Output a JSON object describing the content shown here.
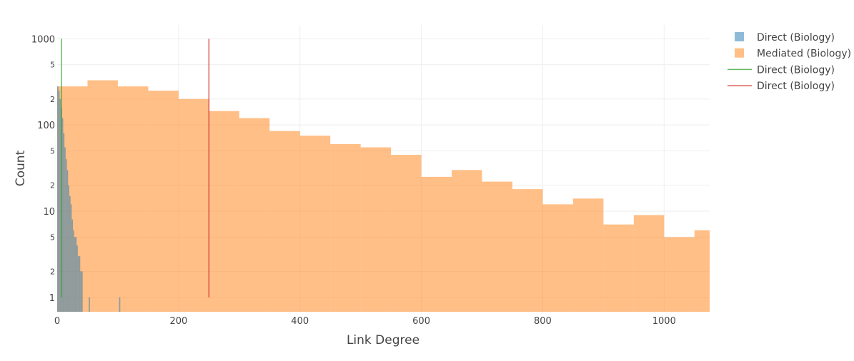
{
  "chart_data": {
    "type": "histogram",
    "xlabel": "Link Degree",
    "ylabel": "Count",
    "xlim": [
      0,
      1075
    ],
    "ylim": [
      0.68,
      1000
    ],
    "y_scale": "log",
    "x_ticks": [
      0,
      200,
      400,
      600,
      800,
      1000
    ],
    "x_tick_labels": [
      "0",
      "200",
      "400",
      "600",
      "800",
      "1000"
    ],
    "y_major_ticks": [
      1,
      10,
      100,
      1000
    ],
    "y_major_labels": [
      "1",
      "10",
      "100",
      "1000"
    ],
    "y_minor_ticks": [
      2,
      5,
      20,
      50,
      200,
      500
    ],
    "y_minor_labels": [
      "2",
      "5",
      "2",
      "5",
      "2",
      "5"
    ],
    "grid": true,
    "legend_position": "right",
    "series": [
      {
        "name": "Direct (Biology)",
        "kind": "bar",
        "color": "#1f77b4",
        "bin_edges": [
          0,
          2,
          4,
          6,
          8,
          10,
          12,
          14,
          16,
          18,
          20,
          22,
          24,
          26,
          28,
          30,
          32,
          34,
          36,
          38,
          40,
          42,
          44,
          46,
          48,
          50,
          52,
          54,
          56,
          58,
          60,
          62,
          64,
          66,
          68,
          70,
          72,
          74,
          76,
          78,
          80,
          82,
          84,
          86,
          88,
          90,
          92,
          94,
          96,
          98,
          100,
          102,
          104
        ],
        "counts": [
          280,
          250,
          200,
          160,
          120,
          80,
          55,
          40,
          30,
          20,
          15,
          12,
          8,
          6,
          5,
          5,
          4,
          3,
          3,
          2,
          2,
          0,
          0,
          0,
          0,
          0,
          1,
          0,
          0,
          0,
          0,
          0,
          0,
          0,
          0,
          0,
          0,
          0,
          0,
          0,
          0,
          0,
          0,
          0,
          0,
          0,
          0,
          0,
          0,
          0,
          0,
          1
        ]
      },
      {
        "name": "Mediated (Biology)",
        "kind": "bar",
        "color": "#ff7f0e",
        "bin_edges": [
          0,
          50,
          100,
          150,
          200,
          250,
          300,
          350,
          400,
          450,
          500,
          550,
          600,
          650,
          700,
          750,
          800,
          850,
          900,
          950,
          1000,
          1050,
          1075
        ],
        "counts": [
          280,
          330,
          280,
          250,
          200,
          145,
          120,
          85,
          75,
          60,
          55,
          45,
          25,
          30,
          22,
          18,
          12,
          14,
          7,
          9,
          5,
          6
        ]
      },
      {
        "name": "Direct (Biology)",
        "kind": "vline",
        "color": "#2ca02c",
        "x": 7
      },
      {
        "name": "Direct (Biology)",
        "kind": "vline",
        "color": "#d62728",
        "x": 250
      }
    ]
  }
}
